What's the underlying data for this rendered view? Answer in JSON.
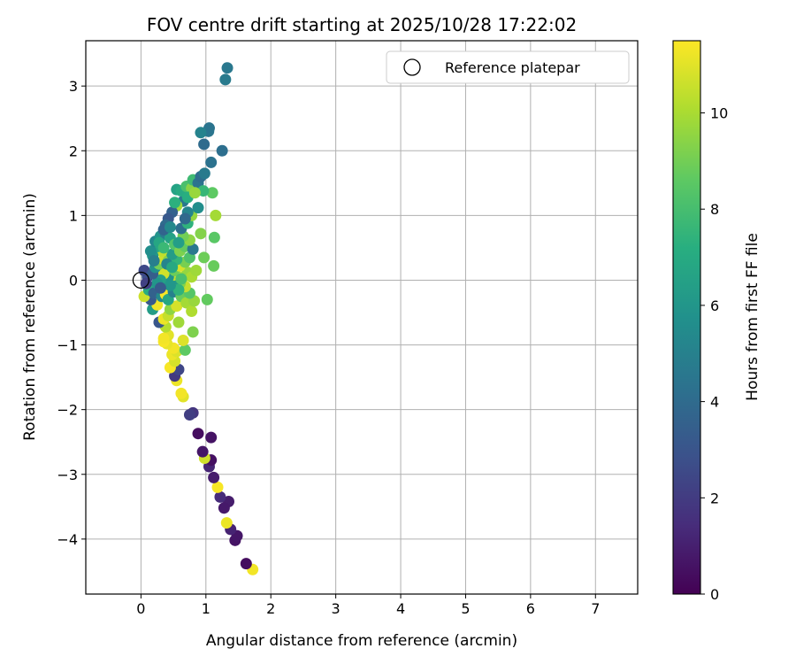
{
  "chart_data": {
    "type": "scatter",
    "title": "FOV centre drift starting at 2025/10/28 17:22:02",
    "xlabel": "Angular distance from reference (arcmin)",
    "ylabel": "Rotation from reference (arcmin)",
    "xlim": [
      -0.85,
      7.65
    ],
    "ylim": [
      -4.85,
      3.7
    ],
    "x_ticks": [
      0,
      1,
      2,
      3,
      4,
      5,
      6,
      7
    ],
    "y_ticks": [
      3,
      2,
      1,
      0,
      -1,
      -2,
      -3,
      -4
    ],
    "x_tick_labels": [
      "0",
      "1",
      "2",
      "3",
      "4",
      "5",
      "6",
      "7"
    ],
    "y_tick_labels": [
      "3",
      "2",
      "1",
      "0",
      "−1",
      "−2",
      "−3",
      "−4"
    ],
    "grid": true,
    "legend": {
      "position": "top-right",
      "entries": [
        "Reference platepar"
      ]
    },
    "reference_point": {
      "x": 0.0,
      "y": 0.0
    },
    "colorbar": {
      "label": "Hours from first FF file",
      "range": [
        0,
        11.5
      ],
      "ticks": [
        0,
        2,
        4,
        6,
        8,
        10
      ],
      "tick_labels": [
        "0",
        "2",
        "4",
        "6",
        "8",
        "10"
      ],
      "colormap": "viridis"
    },
    "points": [
      [
        1.72,
        -4.47,
        11.3
      ],
      [
        1.62,
        -4.38,
        0.4
      ],
      [
        1.45,
        -4.02,
        0.6
      ],
      [
        1.48,
        -3.95,
        0.7
      ],
      [
        1.38,
        -3.85,
        1.1
      ],
      [
        1.32,
        -3.75,
        11.2
      ],
      [
        1.35,
        -3.42,
        0.9
      ],
      [
        1.28,
        -3.52,
        0.8
      ],
      [
        1.22,
        -3.35,
        1.4
      ],
      [
        1.18,
        -3.2,
        11.4
      ],
      [
        1.12,
        -3.05,
        0.9
      ],
      [
        1.05,
        -2.88,
        1.2
      ],
      [
        1.08,
        -2.78,
        0.5
      ],
      [
        0.98,
        -2.75,
        10.7
      ],
      [
        0.95,
        -2.65,
        0.7
      ],
      [
        1.08,
        -2.43,
        0.6
      ],
      [
        0.88,
        -2.37,
        0.4
      ],
      [
        0.8,
        -2.05,
        1.8
      ],
      [
        0.75,
        -2.08,
        2.1
      ],
      [
        0.65,
        -1.8,
        11.0
      ],
      [
        0.62,
        -1.75,
        11.3
      ],
      [
        0.55,
        -1.55,
        11.2
      ],
      [
        0.52,
        -1.48,
        1.9
      ],
      [
        0.58,
        -1.38,
        2.4
      ],
      [
        0.45,
        -1.35,
        11.4
      ],
      [
        0.52,
        -1.25,
        10.8
      ],
      [
        0.48,
        -1.15,
        11.2
      ],
      [
        0.55,
        -1.1,
        10.9
      ],
      [
        0.5,
        -1.05,
        11.3
      ],
      [
        0.4,
        -0.98,
        11.1
      ],
      [
        0.35,
        -0.95,
        11.4
      ],
      [
        0.42,
        -0.85,
        11.0
      ],
      [
        0.68,
        -1.08,
        8.6
      ],
      [
        0.65,
        -0.93,
        10.9
      ],
      [
        0.8,
        -0.8,
        9.2
      ],
      [
        0.35,
        -0.9,
        11.3
      ],
      [
        0.38,
        -0.72,
        10.2
      ],
      [
        0.28,
        -0.65,
        3.1
      ],
      [
        0.35,
        -0.6,
        11.2
      ],
      [
        0.42,
        -0.55,
        10.5
      ],
      [
        0.58,
        -0.65,
        9.8
      ],
      [
        0.45,
        -0.45,
        9.5
      ],
      [
        0.55,
        -0.4,
        10.8
      ],
      [
        0.18,
        -0.45,
        6.3
      ],
      [
        0.25,
        -0.38,
        11.3
      ],
      [
        0.15,
        -0.3,
        3.2
      ],
      [
        0.05,
        -0.25,
        10.6
      ],
      [
        0.12,
        -0.15,
        7.1
      ],
      [
        0.2,
        -0.2,
        3.6
      ],
      [
        0.32,
        -0.25,
        5.4
      ],
      [
        0.38,
        -0.22,
        11.4
      ],
      [
        0.42,
        -0.3,
        6.8
      ],
      [
        0.5,
        -0.18,
        5.0
      ],
      [
        0.62,
        -0.25,
        8.8
      ],
      [
        0.7,
        -0.35,
        9.9
      ],
      [
        0.78,
        -0.48,
        10.1
      ],
      [
        0.82,
        -0.32,
        9.7
      ],
      [
        0.75,
        -0.2,
        8.4
      ],
      [
        1.02,
        -0.3,
        8.7
      ],
      [
        0.68,
        -0.1,
        10.5
      ],
      [
        0.6,
        -0.05,
        9.3
      ],
      [
        0.55,
        0.02,
        6.2
      ],
      [
        0.5,
        0.08,
        10.4
      ],
      [
        0.42,
        0.05,
        5.8
      ],
      [
        0.35,
        0.1,
        10.7
      ],
      [
        0.3,
        0.0,
        6.5
      ],
      [
        0.25,
        -0.05,
        6.0
      ],
      [
        0.1,
        0.05,
        2.8
      ],
      [
        0.05,
        0.15,
        2.5
      ],
      [
        0.08,
        -0.05,
        2.2
      ],
      [
        0.18,
        0.1,
        3.4
      ],
      [
        0.22,
        0.2,
        5.7
      ],
      [
        0.28,
        0.25,
        9.0
      ],
      [
        0.35,
        0.32,
        10.6
      ],
      [
        0.42,
        0.3,
        9.4
      ],
      [
        0.52,
        0.15,
        8.9
      ],
      [
        0.65,
        0.05,
        10.2
      ],
      [
        0.72,
        0.12,
        9.6
      ],
      [
        0.78,
        0.05,
        10.0
      ],
      [
        0.85,
        0.15,
        9.8
      ],
      [
        0.6,
        0.22,
        10.8
      ],
      [
        0.68,
        0.28,
        9.1
      ],
      [
        0.75,
        0.35,
        8.2
      ],
      [
        0.55,
        0.32,
        7.5
      ],
      [
        0.48,
        0.4,
        6.3
      ],
      [
        0.32,
        0.45,
        10.4
      ],
      [
        0.25,
        0.52,
        6.7
      ],
      [
        0.18,
        0.38,
        6.1
      ],
      [
        0.15,
        0.45,
        5.6
      ],
      [
        0.22,
        0.6,
        5.3
      ],
      [
        0.3,
        0.68,
        5.9
      ],
      [
        0.38,
        0.72,
        4.8
      ],
      [
        0.45,
        0.65,
        6.6
      ],
      [
        0.52,
        0.55,
        8.3
      ],
      [
        0.6,
        0.45,
        9.2
      ],
      [
        0.68,
        0.52,
        8.7
      ],
      [
        0.8,
        0.48,
        4.6
      ],
      [
        0.97,
        0.35,
        8.9
      ],
      [
        1.12,
        0.22,
        8.8
      ],
      [
        1.13,
        0.66,
        8.5
      ],
      [
        0.92,
        0.72,
        9.3
      ],
      [
        0.75,
        0.62,
        9.5
      ],
      [
        0.65,
        0.68,
        9.0
      ],
      [
        0.62,
        0.8,
        4.2
      ],
      [
        0.72,
        0.88,
        7.4
      ],
      [
        0.78,
        1.0,
        9.6
      ],
      [
        0.72,
        1.05,
        5.2
      ],
      [
        0.65,
        1.22,
        4.6
      ],
      [
        0.55,
        1.15,
        9.8
      ],
      [
        0.48,
        1.05,
        3.6
      ],
      [
        0.42,
        0.95,
        3.2
      ],
      [
        0.38,
        0.85,
        4.0
      ],
      [
        0.35,
        0.78,
        3.7
      ],
      [
        0.45,
        0.82,
        5.4
      ],
      [
        0.52,
        1.2,
        7.3
      ],
      [
        0.55,
        1.4,
        6.6
      ],
      [
        0.62,
        1.38,
        7.0
      ],
      [
        0.7,
        1.45,
        8.1
      ],
      [
        0.78,
        1.42,
        9.4
      ],
      [
        0.8,
        1.55,
        7.8
      ],
      [
        0.88,
        1.5,
        4.4
      ],
      [
        0.92,
        1.6,
        4.1
      ],
      [
        0.98,
        1.65,
        4.7
      ],
      [
        1.08,
        1.82,
        4.3
      ],
      [
        1.1,
        1.35,
        8.6
      ],
      [
        0.96,
        1.38,
        7.6
      ],
      [
        0.88,
        1.12,
        5.6
      ],
      [
        1.15,
        1.0,
        9.9
      ],
      [
        1.25,
        2.0,
        4.2
      ],
      [
        0.97,
        2.1,
        4.0
      ],
      [
        1.04,
        2.3,
        4.5
      ],
      [
        1.05,
        2.35,
        4.4
      ],
      [
        0.92,
        2.28,
        5.1
      ],
      [
        1.3,
        3.1,
        4.7
      ],
      [
        1.33,
        3.28,
        4.6
      ],
      [
        0.68,
        0.95,
        3.9
      ],
      [
        0.72,
        1.28,
        7.2
      ],
      [
        0.83,
        1.35,
        9.7
      ],
      [
        0.58,
        0.58,
        6.4
      ],
      [
        0.4,
        0.25,
        5.2
      ],
      [
        0.48,
        0.2,
        6.9
      ],
      [
        0.58,
        -0.15,
        7.4
      ],
      [
        0.45,
        -0.08,
        6.0
      ],
      [
        0.3,
        -0.12,
        3.3
      ],
      [
        0.2,
        0.3,
        4.9
      ],
      [
        0.28,
        0.58,
        6.8
      ],
      [
        0.35,
        0.5,
        7.7
      ],
      [
        0.62,
        0.02,
        8.1
      ]
    ]
  }
}
